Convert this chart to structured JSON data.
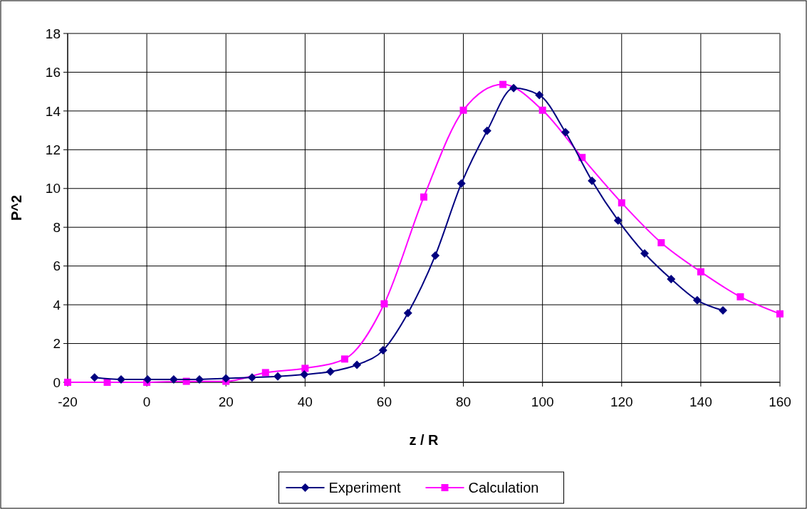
{
  "chart_data": {
    "type": "line",
    "xlabel": "z / R",
    "ylabel": "P^2",
    "xlim": [
      -20,
      160
    ],
    "xticks": [
      -20,
      0,
      20,
      40,
      60,
      80,
      100,
      120,
      140,
      160
    ],
    "ylim": [
      0,
      18
    ],
    "yticks": [
      0,
      2,
      4,
      6,
      8,
      10,
      12,
      14,
      16,
      18
    ],
    "grid": true,
    "legend": "bottom",
    "series": [
      {
        "name": "Experiment",
        "color": "#000080",
        "marker": "diamond",
        "x": [
          -13.2,
          -6.5,
          0.2,
          6.8,
          13.3,
          20,
          26.6,
          33.1,
          39.8,
          46.4,
          53.1,
          59.7,
          66,
          72.9,
          79.5,
          86,
          92.7,
          99.2,
          105.8,
          112.5,
          119.1,
          125.8,
          132.5,
          139.1,
          145.6
        ],
        "values": [
          0.25,
          0.15,
          0.15,
          0.15,
          0.15,
          0.2,
          0.25,
          0.3,
          0.4,
          0.55,
          0.9,
          1.65,
          3.57,
          6.54,
          10.26,
          12.98,
          15.18,
          14.82,
          12.9,
          10.4,
          8.35,
          6.65,
          5.33,
          4.23,
          3.71
        ]
      },
      {
        "name": "Calculation",
        "color": "#ff00ff",
        "marker": "square",
        "x": [
          -20,
          -10,
          0,
          10,
          20,
          30,
          40,
          50,
          60,
          70,
          80,
          90,
          100,
          110,
          120,
          130,
          140,
          150,
          160
        ],
        "values": [
          0,
          0,
          0,
          0.05,
          0.05,
          0.5,
          0.72,
          1.2,
          4.05,
          9.56,
          14.04,
          15.37,
          14.04,
          11.6,
          9.26,
          7.2,
          5.7,
          4.41,
          3.53
        ]
      }
    ]
  }
}
